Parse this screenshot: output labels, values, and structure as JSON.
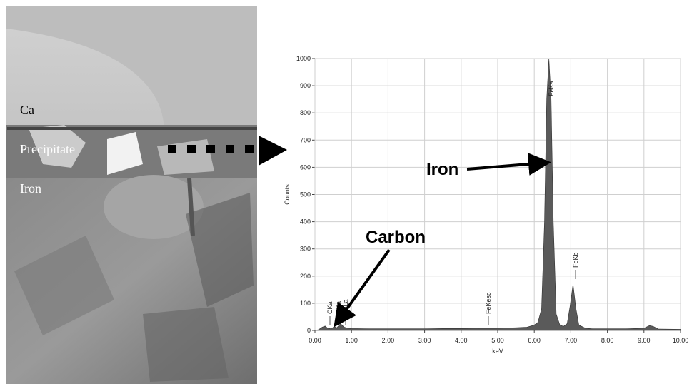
{
  "image_labels": {
    "ca": "Ca",
    "precipitate": "Precipitate",
    "iron": "Iron"
  },
  "chart_data": {
    "type": "area",
    "x_label": "keV",
    "y_label": "Counts",
    "x": [
      0,
      0.1,
      0.2,
      0.28,
      0.35,
      0.45,
      0.52,
      0.6,
      0.7,
      0.8,
      0.9,
      1.0,
      1.5,
      2.0,
      2.5,
      3.0,
      3.5,
      4.0,
      4.5,
      5.0,
      5.5,
      5.8,
      6.0,
      6.1,
      6.2,
      6.28,
      6.34,
      6.4,
      6.46,
      6.52,
      6.6,
      6.7,
      6.8,
      6.9,
      6.98,
      7.06,
      7.14,
      7.22,
      7.4,
      7.6,
      8.0,
      8.5,
      9.0,
      9.15,
      9.25,
      9.4,
      10.0
    ],
    "values": [
      0,
      3,
      12,
      16,
      8,
      6,
      14,
      10,
      25,
      12,
      8,
      7,
      6,
      6,
      6,
      6,
      7,
      7,
      8,
      8,
      10,
      12,
      20,
      30,
      80,
      400,
      850,
      1000,
      850,
      400,
      60,
      20,
      15,
      25,
      90,
      170,
      80,
      20,
      8,
      6,
      6,
      6,
      8,
      18,
      15,
      5,
      4
    ],
    "color": "#5a5a5a",
    "xlim": [
      0,
      10
    ],
    "ylim": [
      0,
      1000
    ],
    "xticks": [
      {
        "value": 0,
        "label": "0.00"
      },
      {
        "value": 1,
        "label": "1.00"
      },
      {
        "value": 2,
        "label": "2.00"
      },
      {
        "value": 3,
        "label": "3.00"
      },
      {
        "value": 4,
        "label": "4.00"
      },
      {
        "value": 5,
        "label": "5.00"
      },
      {
        "value": 6,
        "label": "6.00"
      },
      {
        "value": 7,
        "label": "7.00"
      },
      {
        "value": 8,
        "label": "8.00"
      },
      {
        "value": 9,
        "label": "9.00"
      },
      {
        "value": 10,
        "label": "10.00"
      }
    ],
    "yticks": [
      0,
      100,
      200,
      300,
      400,
      500,
      600,
      700,
      800,
      900,
      1000
    ],
    "grid": true,
    "peak_labels": [
      "CKa",
      "OKa",
      "FeLa",
      "FeKesc",
      "FeKa",
      "FeKb"
    ],
    "annotations": [
      "Iron",
      "Carbon"
    ]
  }
}
